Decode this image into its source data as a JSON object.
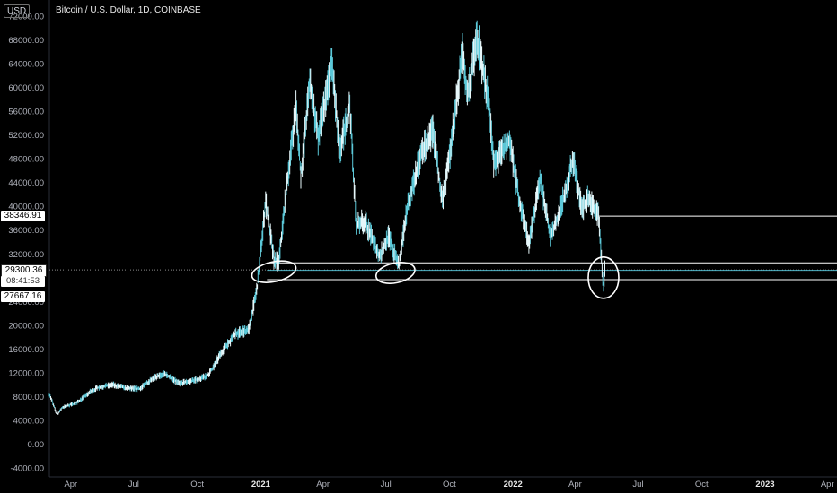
{
  "header": {
    "title": "Bitcoin / U.S. Dollar, 1D, COINBASE",
    "currency": "USD"
  },
  "badges": {
    "level_high": "38346.91",
    "last_price": "29300.36",
    "countdown": "08:41:53",
    "level_low": "27667.16"
  },
  "colors": {
    "candle": "#5bc8d8",
    "candle_light": "#e6f7fa",
    "level_line": "#ffffff",
    "price_line": "#4fb3c4"
  },
  "chart_data": {
    "type": "line",
    "title": "Bitcoin / U.S. Dollar, 1D, COINBASE",
    "ylim": [
      -4000,
      72000
    ],
    "y_ticks": [
      "72000.00",
      "68000.00",
      "64000.00",
      "60000.00",
      "56000.00",
      "52000.00",
      "48000.00",
      "44000.00",
      "40000.00",
      "36000.00",
      "32000.00",
      "28000.00",
      "24000.00",
      "20000.00",
      "16000.00",
      "12000.00",
      "8000.00",
      "4000.00",
      "0.00",
      "-4000.00"
    ],
    "x_ticks": [
      {
        "label": "Apr",
        "bold": false
      },
      {
        "label": "Jul",
        "bold": false
      },
      {
        "label": "Oct",
        "bold": false
      },
      {
        "label": "2021",
        "bold": true
      },
      {
        "label": "Apr",
        "bold": false
      },
      {
        "label": "Jul",
        "bold": false
      },
      {
        "label": "Oct",
        "bold": false
      },
      {
        "label": "2022",
        "bold": true
      },
      {
        "label": "Apr",
        "bold": false
      },
      {
        "label": "Jul",
        "bold": false
      },
      {
        "label": "Oct",
        "bold": false
      },
      {
        "label": "2023",
        "bold": true
      },
      {
        "label": "Apr",
        "bold": false
      }
    ],
    "x_range": [
      "2020-03-01",
      "2023-04-15"
    ],
    "series": [
      {
        "points": [
          [
            "2020-03-01",
            8500
          ],
          [
            "2020-03-12",
            4900
          ],
          [
            "2020-03-20",
            6200
          ],
          [
            "2020-04-10",
            7000
          ],
          [
            "2020-04-29",
            8800
          ],
          [
            "2020-05-10",
            9500
          ],
          [
            "2020-06-01",
            10000
          ],
          [
            "2020-06-20",
            9400
          ],
          [
            "2020-07-10",
            9300
          ],
          [
            "2020-07-27",
            11000
          ],
          [
            "2020-08-15",
            11800
          ],
          [
            "2020-09-05",
            10200
          ],
          [
            "2020-09-25",
            10700
          ],
          [
            "2020-10-15",
            11400
          ],
          [
            "2020-10-25",
            13000
          ],
          [
            "2020-11-05",
            15500
          ],
          [
            "2020-11-25",
            18500
          ],
          [
            "2020-12-15",
            19300
          ],
          [
            "2020-12-27",
            26500
          ],
          [
            "2021-01-08",
            41000
          ],
          [
            "2021-01-20",
            31000
          ],
          [
            "2021-01-27",
            30500
          ],
          [
            "2021-02-10",
            46000
          ],
          [
            "2021-02-21",
            57000
          ],
          [
            "2021-02-28",
            45000
          ],
          [
            "2021-03-13",
            61000
          ],
          [
            "2021-03-25",
            51500
          ],
          [
            "2021-04-14",
            64000
          ],
          [
            "2021-04-25",
            49000
          ],
          [
            "2021-05-10",
            57000
          ],
          [
            "2021-05-19",
            37000
          ],
          [
            "2021-06-01",
            37500
          ],
          [
            "2021-06-22",
            31500
          ],
          [
            "2021-07-05",
            35000
          ],
          [
            "2021-07-20",
            29800
          ],
          [
            "2021-08-01",
            40000
          ],
          [
            "2021-08-23",
            49500
          ],
          [
            "2021-09-07",
            52500
          ],
          [
            "2021-09-21",
            40800
          ],
          [
            "2021-10-01",
            48000
          ],
          [
            "2021-10-20",
            66000
          ],
          [
            "2021-10-27",
            58500
          ],
          [
            "2021-11-10",
            68500
          ],
          [
            "2021-11-28",
            57000
          ],
          [
            "2021-12-04",
            47000
          ],
          [
            "2021-12-27",
            51000
          ],
          [
            "2022-01-10",
            41000
          ],
          [
            "2022-01-24",
            34000
          ],
          [
            "2022-02-10",
            44500
          ],
          [
            "2022-02-24",
            35000
          ],
          [
            "2022-03-10",
            39000
          ],
          [
            "2022-03-29",
            47800
          ],
          [
            "2022-04-11",
            39500
          ],
          [
            "2022-04-20",
            41500
          ],
          [
            "2022-05-05",
            38300
          ],
          [
            "2022-05-09",
            31000
          ],
          [
            "2022-05-12",
            26700
          ],
          [
            "2022-05-14",
            29300
          ]
        ]
      }
    ],
    "levels": [
      {
        "value": 38346.91,
        "from": "2022-05-02"
      },
      {
        "value": 29300.36,
        "from": "2020-03-01",
        "style": "dotted-price"
      },
      {
        "value": 30500,
        "from": "2021-01-10"
      },
      {
        "value": 27667.16,
        "from": "2021-01-10"
      }
    ],
    "annotations": [
      {
        "type": "circle",
        "date": "2021-01-20",
        "value": 29000
      },
      {
        "type": "circle",
        "date": "2021-07-15",
        "value": 28800
      },
      {
        "type": "circle",
        "date": "2022-05-12",
        "value": 28000
      }
    ],
    "grid": false,
    "legend": "none"
  }
}
